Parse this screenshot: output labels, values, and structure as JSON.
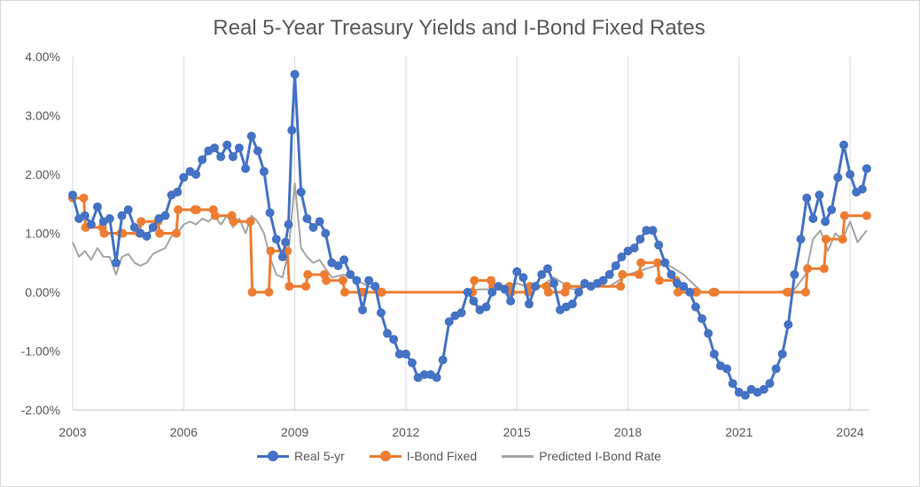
{
  "chart_data": {
    "type": "line",
    "title": "Real 5-Year Treasury Yields and I-Bond Fixed Rates",
    "x_range": [
      2003.0,
      2024.5
    ],
    "ylim": [
      -2.0,
      4.0
    ],
    "y_ticks": [
      "4.00%",
      "3.00%",
      "2.00%",
      "1.00%",
      "0.00%",
      "-1.00%",
      "-2.00%"
    ],
    "y_tick_values": [
      4.0,
      3.0,
      2.0,
      1.0,
      0.0,
      -1.0,
      -2.0
    ],
    "x_ticks": [
      "2003",
      "2006",
      "2009",
      "2012",
      "2015",
      "2018",
      "2021",
      "2024"
    ],
    "x_tick_values": [
      2003,
      2006,
      2009,
      2012,
      2015,
      2018,
      2021,
      2024
    ],
    "grid": "vertical",
    "legend_position": "bottom",
    "series": [
      {
        "name": "Real 5-yr",
        "color": "#4472C4",
        "marker": "circle",
        "x": [
          2003.0,
          2003.17,
          2003.33,
          2003.5,
          2003.67,
          2003.83,
          2004.0,
          2004.17,
          2004.33,
          2004.5,
          2004.67,
          2004.83,
          2005.0,
          2005.17,
          2005.33,
          2005.5,
          2005.67,
          2005.83,
          2006.0,
          2006.17,
          2006.33,
          2006.5,
          2006.67,
          2006.83,
          2007.0,
          2007.17,
          2007.33,
          2007.5,
          2007.67,
          2007.83,
          2008.0,
          2008.17,
          2008.33,
          2008.5,
          2008.67,
          2008.75,
          2008.83,
          2008.92,
          2009.0,
          2009.17,
          2009.33,
          2009.5,
          2009.67,
          2009.83,
          2010.0,
          2010.17,
          2010.33,
          2010.5,
          2010.67,
          2010.83,
          2011.0,
          2011.17,
          2011.33,
          2011.5,
          2011.67,
          2011.83,
          2012.0,
          2012.17,
          2012.33,
          2012.5,
          2012.67,
          2012.83,
          2013.0,
          2013.17,
          2013.33,
          2013.5,
          2013.67,
          2013.83,
          2014.0,
          2014.17,
          2014.33,
          2014.5,
          2014.67,
          2014.83,
          2015.0,
          2015.17,
          2015.33,
          2015.5,
          2015.67,
          2015.83,
          2016.0,
          2016.17,
          2016.33,
          2016.5,
          2016.67,
          2016.83,
          2017.0,
          2017.17,
          2017.33,
          2017.5,
          2017.67,
          2017.83,
          2018.0,
          2018.17,
          2018.33,
          2018.5,
          2018.67,
          2018.83,
          2019.0,
          2019.17,
          2019.33,
          2019.5,
          2019.67,
          2019.83,
          2020.0,
          2020.17,
          2020.33,
          2020.5,
          2020.67,
          2020.83,
          2021.0,
          2021.17,
          2021.33,
          2021.5,
          2021.67,
          2021.83,
          2022.0,
          2022.17,
          2022.33,
          2022.5,
          2022.67,
          2022.83,
          2023.0,
          2023.17,
          2023.33,
          2023.5,
          2023.67,
          2023.83,
          2024.0,
          2024.17,
          2024.33,
          2024.45
        ],
        "y": [
          1.65,
          1.25,
          1.3,
          1.15,
          1.45,
          1.2,
          1.25,
          0.5,
          1.3,
          1.4,
          1.1,
          1.0,
          0.95,
          1.1,
          1.25,
          1.3,
          1.65,
          1.7,
          1.95,
          2.05,
          2.0,
          2.25,
          2.4,
          2.45,
          2.3,
          2.5,
          2.3,
          2.45,
          2.1,
          2.65,
          2.4,
          2.05,
          1.35,
          0.9,
          0.6,
          0.85,
          1.15,
          2.75,
          3.7,
          1.7,
          1.25,
          1.1,
          1.2,
          1.0,
          0.5,
          0.45,
          0.55,
          0.3,
          0.2,
          -0.3,
          0.2,
          0.1,
          -0.35,
          -0.7,
          -0.8,
          -1.05,
          -1.05,
          -1.2,
          -1.45,
          -1.4,
          -1.4,
          -1.45,
          -1.15,
          -0.5,
          -0.4,
          -0.35,
          0.0,
          -0.15,
          -0.3,
          -0.25,
          0.0,
          0.1,
          0.05,
          -0.15,
          0.35,
          0.25,
          -0.2,
          0.1,
          0.3,
          0.4,
          0.15,
          -0.3,
          -0.25,
          -0.2,
          0.0,
          0.15,
          0.1,
          0.15,
          0.2,
          0.3,
          0.45,
          0.6,
          0.7,
          0.75,
          0.9,
          1.05,
          1.05,
          0.8,
          0.5,
          0.3,
          0.15,
          0.1,
          0.0,
          -0.25,
          -0.45,
          -0.7,
          -1.05,
          -1.25,
          -1.3,
          -1.55,
          -1.7,
          -1.75,
          -1.65,
          -1.7,
          -1.65,
          -1.55,
          -1.3,
          -1.05,
          -0.55,
          0.3,
          0.9,
          1.6,
          1.25,
          1.65,
          1.2,
          1.4,
          1.95,
          2.5,
          2.0,
          1.7,
          1.75,
          2.1
        ]
      },
      {
        "name": "I-Bond Fixed",
        "color": "#ED7D31",
        "marker": "circle",
        "x": [
          2003.0,
          2003.3,
          2003.35,
          2003.8,
          2003.85,
          2004.3,
          2004.35,
          2004.8,
          2004.85,
          2005.3,
          2005.35,
          2005.8,
          2005.85,
          2006.3,
          2006.35,
          2006.8,
          2006.85,
          2007.3,
          2007.35,
          2007.8,
          2007.85,
          2008.3,
          2008.35,
          2008.8,
          2008.85,
          2009.3,
          2009.35,
          2009.8,
          2009.85,
          2010.3,
          2010.35,
          2010.8,
          2010.85,
          2011.3,
          2011.35,
          2013.8,
          2013.85,
          2014.3,
          2014.35,
          2014.8,
          2014.85,
          2015.3,
          2015.35,
          2015.8,
          2015.85,
          2016.3,
          2016.35,
          2017.8,
          2017.85,
          2018.3,
          2018.35,
          2018.8,
          2018.85,
          2019.3,
          2019.35,
          2019.8,
          2019.85,
          2020.3,
          2020.35,
          2022.3,
          2022.35,
          2022.8,
          2022.85,
          2023.3,
          2023.35,
          2023.8,
          2023.85,
          2024.45
        ],
        "y": [
          1.6,
          1.6,
          1.1,
          1.1,
          1.0,
          1.0,
          1.0,
          1.0,
          1.2,
          1.2,
          1.0,
          1.0,
          1.4,
          1.4,
          1.4,
          1.4,
          1.3,
          1.3,
          1.2,
          1.2,
          0.0,
          0.0,
          0.7,
          0.7,
          0.1,
          0.1,
          0.3,
          0.3,
          0.2,
          0.2,
          0.0,
          0.0,
          0.0,
          0.0,
          0.0,
          0.0,
          0.2,
          0.2,
          0.1,
          0.1,
          0.0,
          0.0,
          0.1,
          0.1,
          0.0,
          0.0,
          0.1,
          0.1,
          0.3,
          0.3,
          0.5,
          0.5,
          0.2,
          0.2,
          0.0,
          0.0,
          0.0,
          0.0,
          0.0,
          0.0,
          0.0,
          0.0,
          0.4,
          0.4,
          0.9,
          0.9,
          1.3,
          1.3
        ]
      },
      {
        "name": "Predicted I-Bond Rate",
        "color": "#A5A5A5",
        "marker": "none",
        "x": [
          2003.0,
          2003.17,
          2003.33,
          2003.5,
          2003.67,
          2003.83,
          2004.0,
          2004.17,
          2004.33,
          2004.5,
          2004.67,
          2004.83,
          2005.0,
          2005.17,
          2005.33,
          2005.5,
          2005.67,
          2005.83,
          2006.0,
          2006.17,
          2006.33,
          2006.5,
          2006.67,
          2006.83,
          2007.0,
          2007.17,
          2007.33,
          2007.5,
          2007.67,
          2007.83,
          2008.0,
          2008.17,
          2008.33,
          2008.5,
          2008.67,
          2008.83,
          2009.0,
          2009.17,
          2009.33,
          2009.5,
          2009.67,
          2009.83,
          2010.0,
          2010.33,
          2010.67,
          2011.0,
          2011.5,
          2012.0,
          2013.0,
          2013.5,
          2014.0,
          2014.5,
          2015.0,
          2015.5,
          2016.0,
          2016.5,
          2017.0,
          2017.5,
          2018.0,
          2018.5,
          2019.0,
          2019.5,
          2020.0,
          2020.5,
          2021.0,
          2022.0,
          2022.5,
          2022.8,
          2023.0,
          2023.2,
          2023.4,
          2023.6,
          2023.8,
          2024.0,
          2024.2,
          2024.45
        ],
        "y": [
          0.85,
          0.6,
          0.7,
          0.55,
          0.75,
          0.6,
          0.6,
          0.3,
          0.6,
          0.65,
          0.5,
          0.45,
          0.5,
          0.65,
          0.7,
          0.75,
          0.95,
          1.0,
          1.15,
          1.2,
          1.15,
          1.25,
          1.2,
          1.3,
          1.15,
          1.3,
          1.1,
          1.25,
          1.0,
          1.3,
          1.2,
          1.0,
          0.6,
          0.3,
          0.25,
          0.7,
          1.85,
          0.75,
          0.6,
          0.5,
          0.55,
          0.4,
          0.25,
          0.3,
          0.2,
          0.1,
          0.0,
          0.0,
          0.0,
          0.0,
          0.05,
          0.05,
          0.15,
          0.05,
          0.25,
          0.05,
          0.1,
          0.1,
          0.3,
          0.4,
          0.5,
          0.3,
          0.0,
          0.0,
          0.0,
          0.0,
          0.05,
          0.3,
          0.9,
          1.05,
          0.7,
          1.0,
          0.9,
          1.2,
          0.85,
          1.05
        ]
      }
    ]
  }
}
